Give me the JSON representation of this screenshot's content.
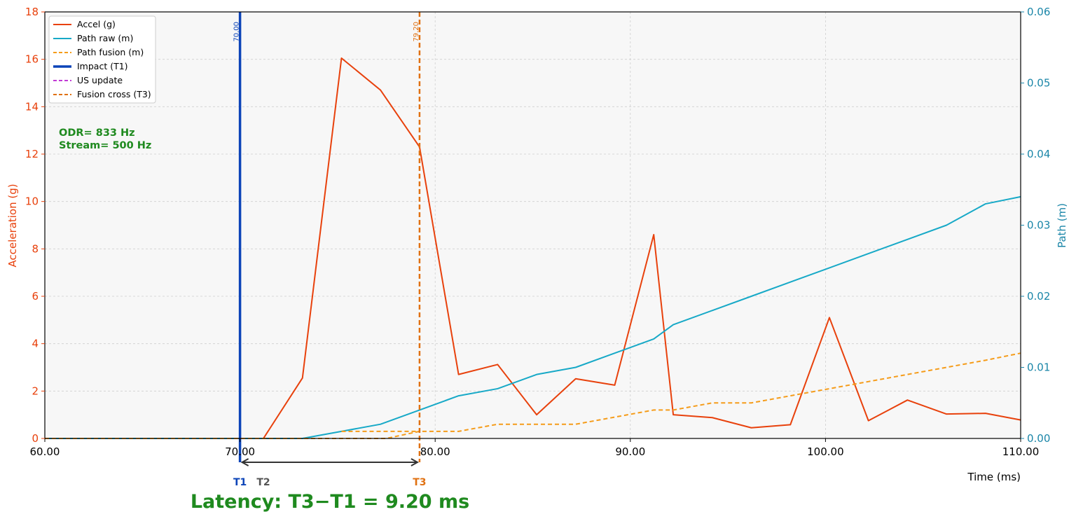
{
  "chart_data": {
    "type": "line",
    "xlabel": "Time (ms)",
    "ylabel_left": "Acceleration (g)",
    "ylabel_right": "Path (m)",
    "xlim": [
      60,
      110
    ],
    "ylim_left": [
      0,
      18
    ],
    "ylim_right": [
      0,
      0.06
    ],
    "x_ticks": [
      "60.00",
      "70.00",
      "80.00",
      "90.00",
      "100.00",
      "110.00"
    ],
    "y_left_ticks": [
      "0",
      "2",
      "4",
      "6",
      "8",
      "10",
      "12",
      "14",
      "16",
      "18"
    ],
    "y_right_ticks": [
      "0.00",
      "0.01",
      "0.02",
      "0.03",
      "0.04",
      "0.05",
      "0.06"
    ],
    "grid": true,
    "legend_position": "top-left",
    "legend": [
      {
        "label": "Accel (g)",
        "color": "#e8410c",
        "style": "solid"
      },
      {
        "label": "Path raw (m)",
        "color": "#17a9c7",
        "style": "solid"
      },
      {
        "label": "Path fusion (m)",
        "color": "#f59c1a",
        "style": "dashed"
      },
      {
        "label": "Impact (T1)",
        "color": "#0c44b8",
        "style": "solid-thick"
      },
      {
        "label": "US update",
        "color": "#c23ad6",
        "style": "dashed"
      },
      {
        "label": "Fusion cross (T3)",
        "color": "#e07112",
        "style": "dashed"
      }
    ],
    "series": [
      {
        "name": "Accel (g)",
        "axis": "left",
        "color": "#e8410c",
        "x": [
          60,
          71.2,
          73.2,
          75.2,
          77.2,
          79.2,
          81.2,
          83.2,
          85.2,
          87.2,
          89.2,
          91.2,
          92.2,
          94.2,
          96.2,
          98.2,
          100.2,
          102.2,
          104.2,
          106.2,
          108.2,
          110
        ],
        "y": [
          0,
          0,
          2.55,
          16.05,
          14.7,
          12.3,
          2.7,
          3.12,
          1.0,
          2.52,
          2.25,
          8.6,
          1.0,
          0.88,
          0.45,
          0.58,
          5.1,
          0.75,
          1.62,
          1.03,
          1.06,
          0.78
        ]
      },
      {
        "name": "Path raw (m)",
        "axis": "right",
        "color": "#17a9c7",
        "x": [
          60,
          73.2,
          75.2,
          77.2,
          79.2,
          81.2,
          83.2,
          85.2,
          87.2,
          89.2,
          91.2,
          92.2,
          94.2,
          96.2,
          98.2,
          100.2,
          102.2,
          104.2,
          106.2,
          108.2,
          110
        ],
        "y": [
          0,
          0,
          0.001,
          0.002,
          0.004,
          0.006,
          0.007,
          0.009,
          0.01,
          0.012,
          0.014,
          0.016,
          0.018,
          0.02,
          0.022,
          0.024,
          0.026,
          0.028,
          0.03,
          0.033,
          0.034
        ]
      },
      {
        "name": "Path fusion (m)",
        "axis": "right",
        "color": "#f59c1a",
        "x": [
          60,
          77.5,
          79.2,
          81.2,
          83.2,
          85.2,
          87.2,
          89.2,
          91.2,
          92.2,
          94.2,
          96.2,
          98.2,
          100.2,
          102.2,
          104.2,
          106.2,
          108.2,
          110
        ],
        "y": [
          0,
          0,
          0.001,
          0.001,
          0.002,
          0.002,
          0.002,
          0.003,
          0.004,
          0.004,
          0.005,
          0.005,
          0.006,
          0.007,
          0.008,
          0.009,
          0.01,
          0.011,
          0.012
        ]
      },
      {
        "name": "Path fusion (m)",
        "axis": "right",
        "color": "#f59c1a",
        "x": [
          75.2,
          77.2,
          79.2
        ],
        "y": [
          0.001,
          0.001,
          0.001
        ]
      }
    ],
    "vlines": [
      {
        "name": "Impact (T1)",
        "x": 70.0,
        "label": "70.00",
        "color": "#0c44b8",
        "style": "solid"
      },
      {
        "name": "Fusion cross (T3)",
        "x": 79.2,
        "label": "79.20",
        "color": "#e07112",
        "style": "dashed"
      }
    ],
    "markers": [
      {
        "label": "T1",
        "x": 70.0,
        "color": "#0c44b8"
      },
      {
        "label": "T2",
        "x": 71.2,
        "color": "#555555"
      },
      {
        "label": "T3",
        "x": 79.2,
        "color": "#e07112"
      }
    ],
    "annotations": {
      "odr": "ODR= 833 Hz",
      "stream": "Stream= 500 Hz",
      "latency": "Latency: T3−T1 = 9.20 ms"
    }
  }
}
